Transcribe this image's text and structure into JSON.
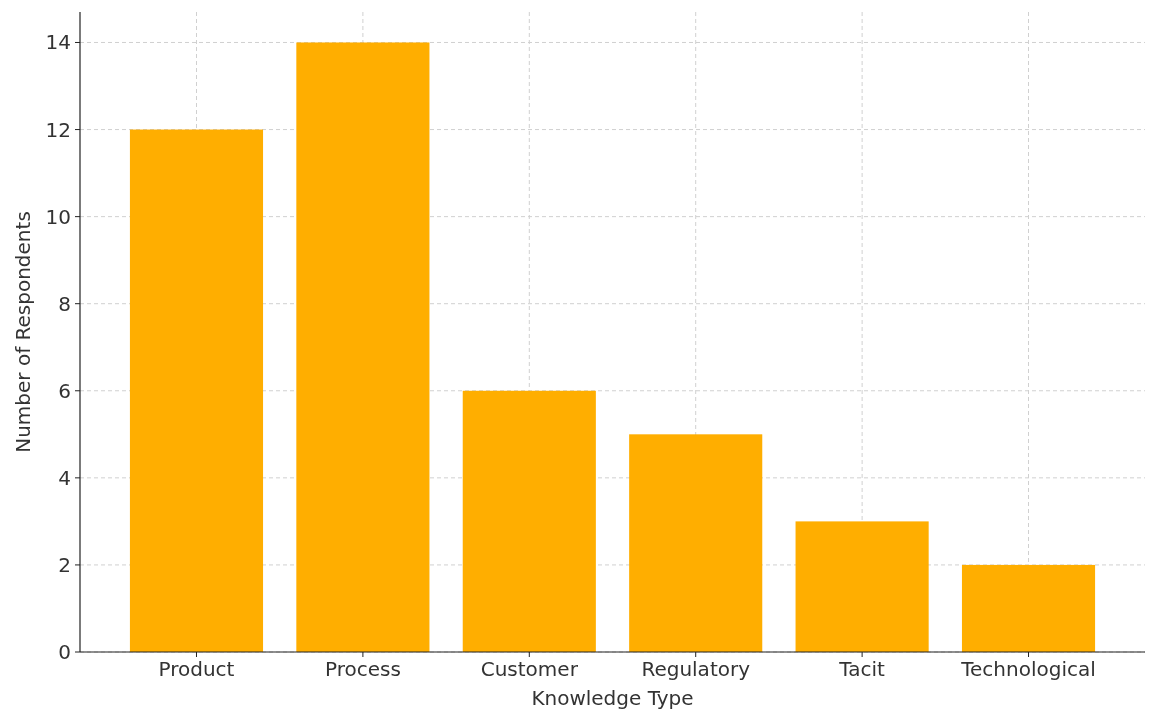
{
  "chart_data": {
    "type": "bar",
    "xlabel": "Knowledge Type",
    "ylabel": "Number of Respondents",
    "categories": [
      "Product",
      "Process",
      "Customer",
      "Regulatory",
      "Tacit",
      "Technological"
    ],
    "values": [
      12,
      14,
      6,
      5,
      3,
      2
    ],
    "color": "#ffae00",
    "ylim": [
      0,
      14.7
    ],
    "yticks": [
      0,
      2,
      4,
      6,
      8,
      10,
      12,
      14
    ],
    "grid": true
  }
}
